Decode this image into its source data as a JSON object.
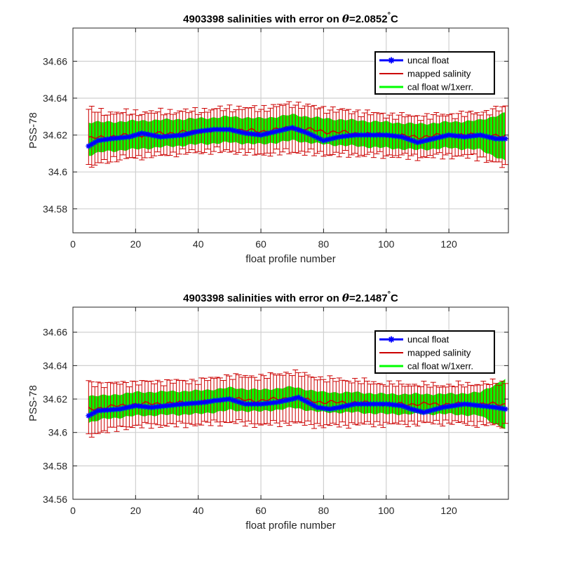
{
  "colors": {
    "uncal": "#0000ff",
    "mapped": "#cc0000",
    "cal": "#00ff00",
    "grid": "#d0d0d0",
    "axis": "#262626"
  },
  "chart_data": [
    {
      "type": "line",
      "title": {
        "prefix": "4903398 salinities with error on ",
        "theta": "θ",
        "value": "=2.0852",
        "degree": "°",
        "unit": "C"
      },
      "xlabel": "float profile number",
      "ylabel": "PSS-78",
      "xlim": [
        0,
        139
      ],
      "ylim": [
        34.567,
        34.678
      ],
      "xticks": [
        0,
        20,
        40,
        60,
        80,
        100,
        120
      ],
      "yticks": [
        34.58,
        34.6,
        34.62,
        34.64,
        34.66
      ],
      "yticklabels": [
        "34.58",
        "34.6",
        "34.62",
        "34.64",
        "34.66"
      ],
      "grid": true,
      "legend_placement": "top-right",
      "legend": [
        "uncal float",
        "mapped salinity",
        "cal float w/1xerr."
      ],
      "x_start": 5,
      "x_end": 138,
      "uncal_anchors": [
        [
          5,
          34.614
        ],
        [
          8,
          34.617
        ],
        [
          12,
          34.618
        ],
        [
          18,
          34.619
        ],
        [
          22,
          34.621
        ],
        [
          28,
          34.619
        ],
        [
          35,
          34.62
        ],
        [
          40,
          34.622
        ],
        [
          45,
          34.623
        ],
        [
          50,
          34.623
        ],
        [
          55,
          34.621
        ],
        [
          60,
          34.62
        ],
        [
          65,
          34.622
        ],
        [
          70,
          34.624
        ],
        [
          75,
          34.621
        ],
        [
          80,
          34.617
        ],
        [
          85,
          34.619
        ],
        [
          90,
          34.62
        ],
        [
          100,
          34.62
        ],
        [
          105,
          34.619
        ],
        [
          110,
          34.616
        ],
        [
          115,
          34.618
        ],
        [
          120,
          34.62
        ],
        [
          125,
          34.619
        ],
        [
          130,
          34.62
        ],
        [
          135,
          34.618
        ],
        [
          138,
          34.618
        ]
      ],
      "uncal_gaps": [
        54,
        58,
        122
      ],
      "mapped_anchors": [
        [
          5,
          34.618
        ],
        [
          10,
          34.619
        ],
        [
          20,
          34.62
        ],
        [
          30,
          34.621
        ],
        [
          40,
          34.622
        ],
        [
          50,
          34.623
        ],
        [
          60,
          34.622
        ],
        [
          70,
          34.624
        ],
        [
          80,
          34.622
        ],
        [
          90,
          34.621
        ],
        [
          100,
          34.62
        ],
        [
          110,
          34.619
        ],
        [
          120,
          34.62
        ],
        [
          130,
          34.62
        ],
        [
          138,
          34.619
        ]
      ],
      "error_anchors": [
        [
          5,
          0.016
        ],
        [
          10,
          0.013
        ],
        [
          20,
          0.012
        ],
        [
          40,
          0.011
        ],
        [
          70,
          0.013
        ],
        [
          100,
          0.011
        ],
        [
          120,
          0.011
        ],
        [
          130,
          0.012
        ],
        [
          138,
          0.016
        ]
      ],
      "band_half_anchors": [
        [
          5,
          0.009
        ],
        [
          10,
          0.008
        ],
        [
          40,
          0.007
        ],
        [
          80,
          0.007
        ],
        [
          120,
          0.007
        ],
        [
          130,
          0.008
        ],
        [
          138,
          0.013
        ]
      ]
    },
    {
      "type": "line",
      "title": {
        "prefix": "4903398 salinities with error on ",
        "theta": "θ",
        "value": "=2.1487",
        "degree": "°",
        "unit": "C"
      },
      "xlabel": "float profile number",
      "ylabel": "PSS-78",
      "xlim": [
        0,
        139
      ],
      "ylim": [
        34.56,
        34.675
      ],
      "xticks": [
        0,
        20,
        40,
        60,
        80,
        100,
        120
      ],
      "yticks": [
        34.56,
        34.58,
        34.6,
        34.62,
        34.64,
        34.66
      ],
      "yticklabels": [
        "34.56",
        "34.58",
        "34.6",
        "34.62",
        "34.64",
        "34.66"
      ],
      "grid": true,
      "legend_placement": "top-right",
      "legend": [
        "uncal float",
        "mapped salinity",
        "cal float w/1xerr."
      ],
      "x_start": 5,
      "x_end": 138,
      "uncal_anchors": [
        [
          5,
          34.61
        ],
        [
          8,
          34.613
        ],
        [
          15,
          34.614
        ],
        [
          20,
          34.616
        ],
        [
          25,
          34.615
        ],
        [
          30,
          34.616
        ],
        [
          35,
          34.617
        ],
        [
          42,
          34.618
        ],
        [
          45,
          34.619
        ],
        [
          50,
          34.62
        ],
        [
          55,
          34.617
        ],
        [
          60,
          34.617
        ],
        [
          65,
          34.618
        ],
        [
          70,
          34.62
        ],
        [
          72,
          34.621
        ],
        [
          78,
          34.615
        ],
        [
          82,
          34.614
        ],
        [
          85,
          34.615
        ],
        [
          90,
          34.617
        ],
        [
          95,
          34.617
        ],
        [
          100,
          34.617
        ],
        [
          105,
          34.616
        ],
        [
          108,
          34.614
        ],
        [
          112,
          34.612
        ],
        [
          118,
          34.615
        ],
        [
          125,
          34.617
        ],
        [
          130,
          34.616
        ],
        [
          135,
          34.615
        ],
        [
          138,
          34.614
        ]
      ],
      "uncal_gaps": [],
      "mapped_anchors": [
        [
          5,
          34.614
        ],
        [
          10,
          34.615
        ],
        [
          20,
          34.617
        ],
        [
          40,
          34.618
        ],
        [
          50,
          34.62
        ],
        [
          60,
          34.619
        ],
        [
          70,
          34.621
        ],
        [
          80,
          34.618
        ],
        [
          90,
          34.618
        ],
        [
          100,
          34.617
        ],
        [
          110,
          34.617
        ],
        [
          120,
          34.617
        ],
        [
          130,
          34.617
        ],
        [
          138,
          34.617
        ]
      ],
      "error_anchors": [
        [
          5,
          0.016
        ],
        [
          10,
          0.014
        ],
        [
          20,
          0.013
        ],
        [
          40,
          0.013
        ],
        [
          70,
          0.015
        ],
        [
          100,
          0.012
        ],
        [
          120,
          0.011
        ],
        [
          138,
          0.013
        ]
      ],
      "band_half_anchors": [
        [
          5,
          0.008
        ],
        [
          10,
          0.007
        ],
        [
          40,
          0.007
        ],
        [
          80,
          0.006
        ],
        [
          120,
          0.006
        ],
        [
          130,
          0.007
        ],
        [
          138,
          0.015
        ]
      ]
    }
  ]
}
